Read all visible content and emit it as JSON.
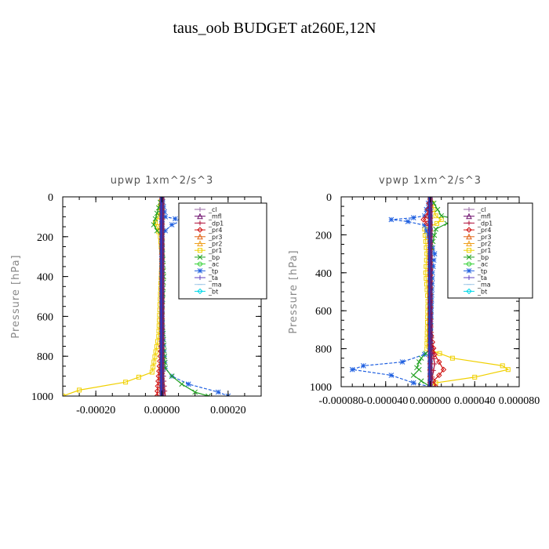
{
  "title": "taus_oob  BUDGET at260E,12N",
  "chart_data": [
    {
      "type": "line",
      "title": "upwp   1xm^2/s^3",
      "ylabel": "Pressure  [hPa]",
      "xlim": [
        -0.0003,
        0.0003
      ],
      "ylim": [
        1000,
        0
      ],
      "xticks": [
        -0.0002,
        0.0,
        0.0002
      ],
      "xtick_labels": [
        "-0.00020",
        "0.00000",
        "0.00020"
      ],
      "yticks": [
        0,
        200,
        400,
        600,
        800,
        1000
      ],
      "ytick_labels": [
        "0",
        "200",
        "400",
        "600",
        "800",
        "1000"
      ],
      "legend_position": "top-right",
      "series": [
        {
          "name": "_cl",
          "color": "#9a68a6",
          "marker": "plus",
          "x": [
            0,
            0,
            0,
            0,
            0,
            0,
            0,
            0,
            0,
            0,
            0
          ],
          "y": [
            0,
            100,
            200,
            300,
            400,
            500,
            600,
            700,
            800,
            900,
            1000
          ]
        },
        {
          "name": "_mfl",
          "color": "#6a0a6a",
          "marker": "triangle",
          "x": [
            0,
            0,
            0,
            0,
            0,
            0,
            0,
            0,
            0,
            0,
            0
          ],
          "y": [
            0,
            100,
            200,
            300,
            400,
            500,
            600,
            700,
            800,
            900,
            1000
          ]
        },
        {
          "name": "_dp1",
          "color": "#b0103a",
          "marker": "plus",
          "x": [
            0,
            0,
            0,
            0,
            0,
            0,
            0,
            0,
            0,
            5e-06,
            1e-05
          ],
          "y": [
            0,
            100,
            200,
            300,
            400,
            500,
            600,
            700,
            800,
            900,
            1000
          ]
        },
        {
          "name": "_pr4",
          "color": "#d01010",
          "marker": "diamond",
          "x": [
            0,
            0,
            0,
            0,
            0,
            0,
            0,
            0,
            -5e-06,
            -1e-05,
            -1.5e-05
          ],
          "y": [
            0,
            100,
            200,
            300,
            400,
            500,
            600,
            700,
            800,
            900,
            1000
          ]
        },
        {
          "name": "_pr3",
          "color": "#e06010",
          "marker": "triangle",
          "x": [
            0,
            0,
            0,
            0,
            0,
            0,
            0,
            0,
            0,
            0,
            0
          ],
          "y": [
            0,
            100,
            200,
            300,
            400,
            500,
            600,
            700,
            800,
            900,
            1000
          ]
        },
        {
          "name": "_pr2",
          "color": "#f0a020",
          "marker": "triangle",
          "x": [
            0,
            0,
            0,
            0,
            0,
            0,
            0,
            0,
            0,
            0,
            0
          ],
          "y": [
            0,
            100,
            200,
            300,
            400,
            500,
            600,
            700,
            800,
            900,
            1000
          ]
        },
        {
          "name": "_pr1",
          "color": "#f0d000",
          "marker": "square",
          "x": [
            0,
            -1e-05,
            -2e-05,
            -1.5e-05,
            -1e-05,
            -5e-06,
            0,
            -1e-05,
            -3e-05,
            -0.00011,
            -0.00025,
            -0.0003
          ],
          "y": [
            0,
            100,
            130,
            150,
            175,
            200,
            300,
            700,
            880,
            930,
            970,
            1000
          ]
        },
        {
          "name": "_bp",
          "color": "#20a020",
          "marker": "x",
          "x": [
            0,
            -2e-05,
            -2.5e-05,
            -1.5e-05,
            0,
            5e-06,
            0,
            1e-05,
            3e-05,
            6e-05,
            0.0001,
            0.00014
          ],
          "y": [
            0,
            110,
            140,
            170,
            200,
            400,
            600,
            860,
            900,
            940,
            980,
            1000
          ]
        },
        {
          "name": "_ac",
          "color": "#30d030",
          "marker": "circle",
          "x": [
            0,
            0,
            0,
            0,
            0,
            0,
            0,
            0,
            0,
            0,
            0
          ],
          "y": [
            0,
            100,
            200,
            300,
            400,
            500,
            600,
            700,
            800,
            900,
            1000
          ]
        },
        {
          "name": "_tp",
          "color": "#2060e0",
          "marker": "asterisk",
          "x": [
            0,
            1e-05,
            4e-05,
            6e-05,
            3e-05,
            1e-05,
            0,
            0,
            1e-05,
            3e-05,
            8e-05,
            0.00017,
            0.0002
          ],
          "y": [
            0,
            100,
            110,
            120,
            140,
            170,
            200,
            600,
            860,
            900,
            940,
            980,
            1000
          ]
        },
        {
          "name": "_ta",
          "color": "#6040c0",
          "marker": "plus",
          "x": [
            0,
            0,
            0,
            0,
            0,
            0,
            0,
            0,
            0,
            0,
            0
          ],
          "y": [
            0,
            100,
            200,
            300,
            400,
            500,
            600,
            700,
            800,
            900,
            1000
          ]
        },
        {
          "name": "_ma",
          "color": "#a0c8e8",
          "marker": "line",
          "x": [
            0,
            0,
            0,
            0,
            0,
            0,
            0,
            0,
            0,
            0,
            0
          ],
          "y": [
            0,
            100,
            200,
            300,
            400,
            500,
            600,
            700,
            800,
            900,
            1000
          ]
        },
        {
          "name": "_bt",
          "color": "#00d8e8",
          "marker": "diamond",
          "x": [
            0,
            0,
            0,
            0,
            0,
            0,
            0,
            0,
            0,
            0,
            0
          ],
          "y": [
            0,
            100,
            200,
            300,
            400,
            500,
            600,
            700,
            800,
            900,
            1000
          ]
        }
      ]
    },
    {
      "type": "line",
      "title": "vpwp   1xm^2/s^3",
      "ylabel": "Pressure  [hPa]",
      "xlim": [
        -8e-05,
        8e-05
      ],
      "ylim": [
        1000,
        0
      ],
      "xticks": [
        -8e-05,
        -4e-05,
        0.0,
        4e-05,
        8e-05
      ],
      "xtick_labels": [
        "-0.000080",
        "-0.000040",
        "0.000000",
        "0.000040",
        "0.000080"
      ],
      "yticks": [
        0,
        200,
        400,
        600,
        800,
        1000
      ],
      "ytick_labels": [
        "0",
        "200",
        "400",
        "600",
        "800",
        "1000"
      ],
      "legend_position": "top-right",
      "series": [
        {
          "name": "_cl",
          "color": "#9a68a6",
          "marker": "plus",
          "x": [
            0,
            0,
            0,
            0,
            0,
            0,
            0,
            0,
            0,
            0,
            0
          ],
          "y": [
            0,
            100,
            200,
            300,
            400,
            500,
            600,
            700,
            800,
            900,
            1000
          ]
        },
        {
          "name": "_mfl",
          "color": "#6a0a6a",
          "marker": "triangle",
          "x": [
            0,
            0,
            0,
            0,
            0,
            0,
            0,
            0,
            0,
            0,
            0
          ],
          "y": [
            0,
            100,
            200,
            300,
            400,
            500,
            600,
            700,
            800,
            900,
            1000
          ]
        },
        {
          "name": "_dp1",
          "color": "#b0103a",
          "marker": "plus",
          "x": [
            0,
            0,
            0,
            0,
            0,
            0,
            0,
            2e-06,
            4e-06,
            2e-06,
            0
          ],
          "y": [
            0,
            100,
            200,
            300,
            400,
            500,
            600,
            800,
            880,
            950,
            1000
          ]
        },
        {
          "name": "_pr4",
          "color": "#d01010",
          "marker": "diamond",
          "x": [
            0,
            -3e-06,
            -6e-06,
            -3e-06,
            0,
            0,
            0,
            4e-06,
            8e-06,
            1.2e-05,
            8e-06,
            3e-06,
            5e-06
          ],
          "y": [
            0,
            100,
            120,
            140,
            170,
            300,
            700,
            830,
            870,
            910,
            940,
            970,
            1000
          ]
        },
        {
          "name": "_pr3",
          "color": "#e06010",
          "marker": "triangle",
          "x": [
            0,
            0,
            0,
            0,
            0,
            0,
            0,
            0,
            0,
            0,
            0
          ],
          "y": [
            0,
            100,
            200,
            300,
            400,
            500,
            600,
            700,
            800,
            900,
            1000
          ]
        },
        {
          "name": "_pr2",
          "color": "#f0a020",
          "marker": "triangle",
          "x": [
            0,
            0,
            0,
            0,
            0,
            0,
            0,
            0,
            0,
            0,
            0
          ],
          "y": [
            0,
            100,
            200,
            300,
            400,
            500,
            600,
            700,
            800,
            900,
            1000
          ]
        },
        {
          "name": "_pr1",
          "color": "#f0d000",
          "marker": "square",
          "x": [
            0,
            5e-06,
            1e-05,
            6e-06,
            -5e-06,
            -3e-06,
            -4e-06,
            -2e-06,
            -3e-06,
            2e-05,
            6.5e-05,
            7e-05,
            4e-05,
            5e-06,
            0
          ],
          "y": [
            0,
            100,
            120,
            140,
            170,
            300,
            400,
            550,
            800,
            850,
            890,
            910,
            950,
            980,
            1000
          ]
        },
        {
          "name": "_bp",
          "color": "#20a020",
          "marker": "x",
          "x": [
            0,
            1e-05,
            2.5e-05,
            1.5e-05,
            5e-06,
            0,
            0,
            -8e-06,
            -1e-05,
            -1.2e-05,
            -1e-05,
            -1.5e-05,
            -8e-06,
            0
          ],
          "y": [
            0,
            100,
            120,
            140,
            170,
            300,
            800,
            850,
            870,
            900,
            910,
            940,
            970,
            1000
          ]
        },
        {
          "name": "_ac",
          "color": "#30d030",
          "marker": "circle",
          "x": [
            0,
            0,
            0,
            0,
            0,
            0,
            0,
            0,
            0,
            0,
            0
          ],
          "y": [
            0,
            100,
            200,
            300,
            400,
            500,
            600,
            700,
            800,
            900,
            1000
          ]
        },
        {
          "name": "_tp",
          "color": "#2060e0",
          "marker": "asterisk",
          "x": [
            0,
            -5e-06,
            -1.5e-05,
            -3.5e-05,
            -2e-05,
            -5e-06,
            4e-06,
            2e-06,
            0,
            -5e-06,
            -2.5e-05,
            -6e-05,
            -7e-05,
            -3.5e-05,
            -1.5e-05,
            0
          ],
          "y": [
            0,
            100,
            110,
            120,
            130,
            150,
            300,
            400,
            800,
            830,
            870,
            890,
            910,
            940,
            980,
            1000
          ]
        },
        {
          "name": "_ta",
          "color": "#6040c0",
          "marker": "plus",
          "x": [
            0,
            0,
            0,
            0,
            0,
            0,
            0,
            0,
            0,
            0,
            0
          ],
          "y": [
            0,
            100,
            200,
            300,
            400,
            500,
            600,
            700,
            800,
            900,
            1000
          ]
        },
        {
          "name": "_ma",
          "color": "#a0c8e8",
          "marker": "line",
          "x": [
            0,
            0,
            0,
            0,
            0,
            0,
            0,
            0,
            0,
            0,
            0
          ],
          "y": [
            0,
            100,
            200,
            300,
            400,
            500,
            600,
            700,
            800,
            900,
            1000
          ]
        },
        {
          "name": "_bt",
          "color": "#00d8e8",
          "marker": "diamond",
          "x": [
            0,
            0,
            0,
            0,
            0,
            0,
            0,
            0,
            0,
            0,
            0
          ],
          "y": [
            0,
            100,
            200,
            300,
            400,
            500,
            600,
            700,
            800,
            900,
            1000
          ]
        }
      ]
    }
  ]
}
